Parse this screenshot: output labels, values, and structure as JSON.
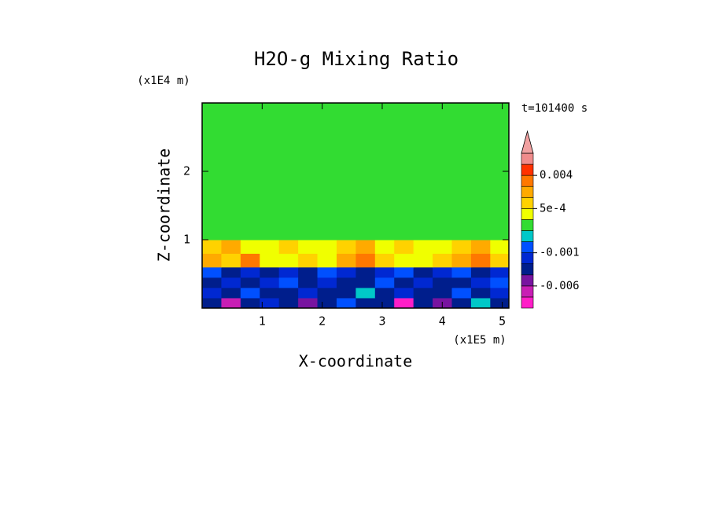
{
  "chart_data": {
    "type": "contour",
    "title": "H2O-g Mixing Ratio",
    "x_label": "X-coordinate",
    "y_label": "Z-coordinate",
    "x_scale_label": "(x1E5 m)",
    "y_scale_label": "(x1E4 m)",
    "time_label": "t=101400 s",
    "xlim": [
      0,
      5.11
    ],
    "ylim": [
      0,
      3
    ],
    "xticks": [
      1,
      2,
      3,
      4,
      5
    ],
    "yticks": [
      1,
      2
    ],
    "levels": [
      -0.01,
      -0.008,
      -0.006,
      -0.004,
      -0.002,
      -0.001,
      -0.0005,
      -0.0001,
      0.0001,
      0.0005,
      0.001,
      0.002,
      0.004,
      0.006,
      0.008
    ],
    "level_colors": [
      "#ff1ec8",
      "#c81eb4",
      "#7814a0",
      "#001e8c",
      "#0028d2",
      "#0050ff",
      "#00c8c8",
      "#32dc32",
      "#f0ff00",
      "#ffd200",
      "#ffaa00",
      "#ff7800",
      "#ff3200",
      "#f08c8c"
    ],
    "over_color": "#f0a0a0",
    "colorbar_ticks": [
      {
        "value": -0.006,
        "label": "-0.006"
      },
      {
        "value": -0.001,
        "label": "-0.001"
      },
      {
        "value": 0.0005,
        "label": "5e-4"
      },
      0.004
    ],
    "field": {
      "x": [
        0,
        0.32,
        0.64,
        0.96,
        1.28,
        1.6,
        1.92,
        2.24,
        2.56,
        2.88,
        3.2,
        3.52,
        3.84,
        4.16,
        4.48,
        4.8,
        5.11
      ],
      "z": [
        0,
        0.15,
        0.3,
        0.45,
        0.6,
        0.8,
        1.0,
        3.0
      ],
      "values": [
        [
          -0.003,
          -0.007,
          -0.003,
          -0.0015,
          -0.003,
          -0.005,
          -0.003,
          -0.0007,
          -0.003,
          -0.003,
          -0.009,
          -0.003,
          -0.005,
          -0.003,
          -0.0003,
          -0.003
        ],
        [
          -0.0015,
          -0.003,
          -0.0007,
          -0.003,
          -0.003,
          -0.0015,
          -0.003,
          -0.003,
          -0.0003,
          -0.003,
          -0.0015,
          -0.003,
          -0.003,
          -0.0007,
          -0.003,
          -0.0015
        ],
        [
          -0.003,
          -0.0015,
          -0.003,
          -0.0015,
          -0.0007,
          -0.003,
          -0.0015,
          -0.003,
          -0.003,
          -0.0007,
          -0.003,
          -0.0015,
          -0.003,
          -0.003,
          -0.0015,
          -0.0007
        ],
        [
          -0.0007,
          -0.003,
          -0.0015,
          -0.003,
          -0.0015,
          -0.003,
          -0.0007,
          -0.0015,
          -0.003,
          -0.0015,
          -0.0007,
          -0.003,
          -0.0015,
          -0.0007,
          -0.003,
          -0.0015
        ],
        [
          0.0015,
          0.0008,
          0.003,
          0.0003,
          0.0003,
          0.0008,
          0.0003,
          0.0015,
          0.003,
          0.0008,
          0.0003,
          0.0003,
          0.0008,
          0.0015,
          0.003,
          0.0008
        ],
        [
          0.0008,
          0.0015,
          0.0003,
          0.0003,
          0.0008,
          0.0003,
          0.0003,
          0.0008,
          0.0015,
          0.0003,
          0.0008,
          0.0003,
          0.0003,
          0.0008,
          0.0015,
          0.0003
        ],
        [
          0,
          0,
          0,
          0,
          0,
          0,
          0,
          0,
          0,
          0,
          0,
          0,
          0,
          0,
          0,
          0
        ]
      ]
    }
  }
}
